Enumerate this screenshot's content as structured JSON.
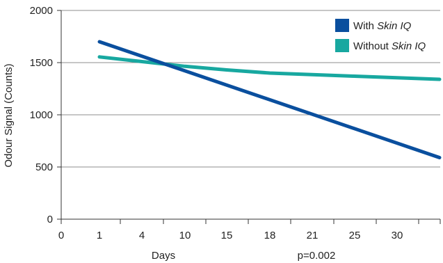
{
  "chart_data": {
    "type": "line",
    "xlabel": "Days",
    "ylabel": "Odour Signal (Counts)",
    "annotation": "p=0.002",
    "x_ticks": [
      "0",
      "1",
      "4",
      "10",
      "15",
      "18",
      "21",
      "25",
      "30"
    ],
    "ylim": [
      0,
      2000
    ],
    "y_ticks": [
      "0",
      "500",
      "1000",
      "1500",
      "2000"
    ],
    "grid": "horizontal",
    "legend_position": "top-right",
    "series": [
      {
        "name_parts": [
          "With ",
          "Skin IQ"
        ],
        "color": "#0a4f9e",
        "x": [
          1,
          35
        ],
        "y": [
          1700,
          590
        ]
      },
      {
        "name_parts": [
          "Without ",
          "Skin IQ"
        ],
        "color": "#18a8a0",
        "x": [
          1,
          4,
          10,
          15,
          18,
          21,
          25,
          30,
          35
        ],
        "y": [
          1555,
          1510,
          1465,
          1430,
          1400,
          1385,
          1370,
          1355,
          1340
        ]
      }
    ]
  }
}
